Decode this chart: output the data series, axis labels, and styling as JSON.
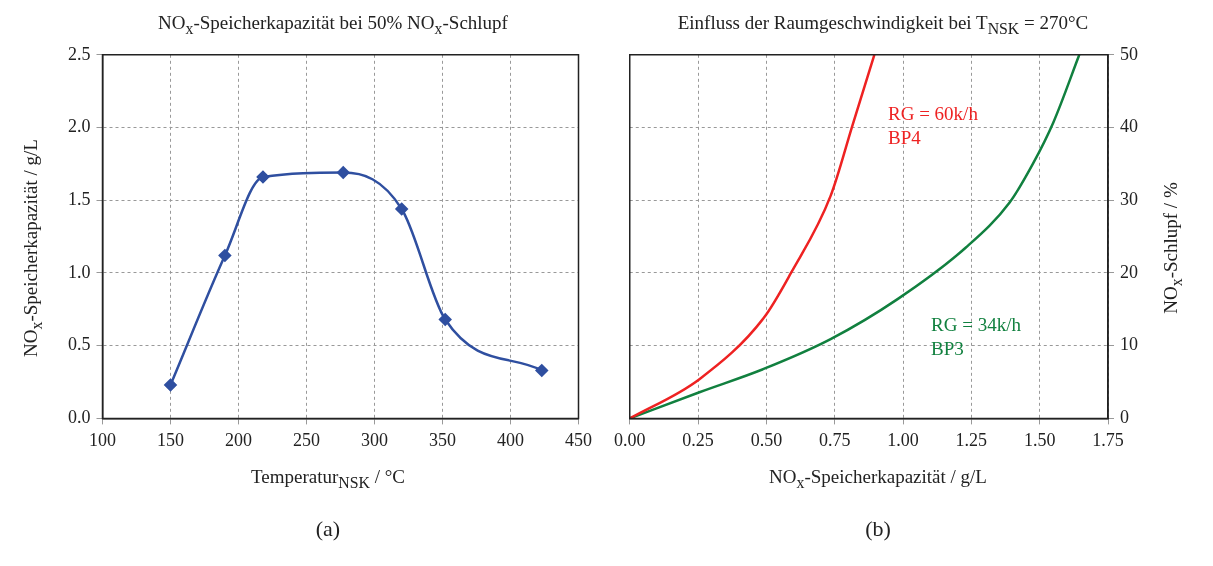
{
  "chart_data": [
    {
      "type": "line",
      "title": "NO$_{x}$-Speicherkapazität bei 50% NO$_{x}$-Schlupf",
      "xlabel": "Temperatur$_{NSK}$ / °C",
      "ylabel": "NO$_{x}$-Speicherkapazität / g/L",
      "annotations": [
        "(a)"
      ],
      "series": [
        {
          "color": "#2f4fa0",
          "x": [
            150,
            190,
            218,
            277,
            320,
            352,
            423
          ],
          "values": [
            0.23,
            1.12,
            1.66,
            1.69,
            1.44,
            0.68,
            0.33
          ]
        }
      ],
      "xlim": [
        100,
        450
      ],
      "xticks": [
        100,
        150,
        200,
        250,
        300,
        350,
        400,
        450
      ],
      "ylim": [
        0,
        2.5
      ],
      "yticks": [
        {
          "value": 0,
          "label": "0.0"
        },
        {
          "value": 0.5,
          "label": "0.5"
        },
        {
          "value": 1,
          "label": "1.0"
        },
        {
          "value": 1.5,
          "label": "1.5"
        },
        {
          "value": 2,
          "label": "2.0"
        },
        {
          "value": 2.5,
          "label": "2.5"
        }
      ],
      "grid": true,
      "marker": "diamond"
    },
    {
      "type": "line",
      "title": "Einfluss der Raumgeschwindigkeit bei T$_{NSK}$ = 270°C",
      "xlabel": "NO$_{x}$-Speicherkapazität / g/L",
      "y2label": "NO$_{x}$-Schlupf / %",
      "annotations": [
        "RG = 60k/h\nBP4",
        "RG = 34k/h\nBP3",
        "(b)"
      ],
      "series": [
        {
          "color": "#ee2222",
          "axis": "y2",
          "x": [
            0,
            0.255,
            0.49,
            0.59,
            0.735,
            0.815,
            0.895
          ],
          "values": [
            0,
            5.4,
            13.8,
            20,
            30.6,
            40.3,
            50
          ]
        },
        {
          "color": "#11803f",
          "axis": "y2",
          "x": [
            0,
            0.255,
            0.49,
            0.735,
            0.98,
            1.23,
            1.39,
            1.475,
            1.55,
            1.645
          ],
          "values": [
            0,
            3.6,
            6.8,
            10.9,
            16.4,
            23.5,
            29.7,
            35,
            40.7,
            50
          ]
        }
      ],
      "xlim": [
        0,
        1.75
      ],
      "xticks": [
        {
          "value": 0,
          "label": "0.00"
        },
        0.25,
        {
          "value": 0.5,
          "label": "0.50"
        },
        0.75,
        {
          "value": 1,
          "label": "1.00"
        },
        1.25,
        {
          "value": 1.5,
          "label": "1.50"
        },
        1.75
      ],
      "y2lim": [
        0,
        50
      ],
      "y2ticks": [
        0,
        10,
        20,
        30,
        40,
        50
      ],
      "grid": true,
      "marker": "none"
    }
  ]
}
